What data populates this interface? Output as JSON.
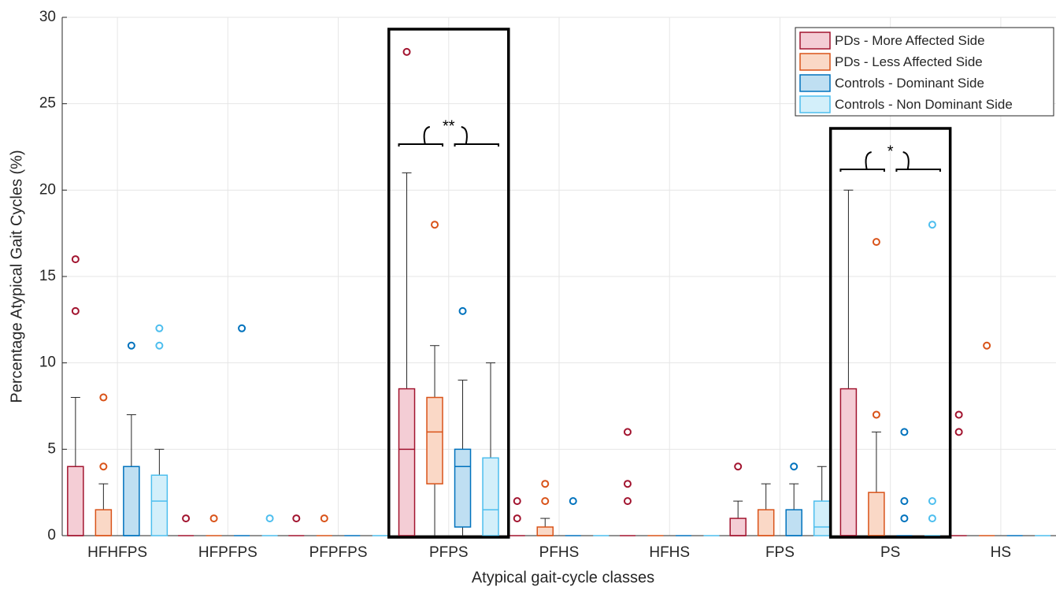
{
  "chart_data": {
    "type": "box",
    "x_label": "Atypical gait-cycle classes",
    "y_label": "Percentage Atypical Gait Cycles (%)",
    "categories": [
      "HFHFPS",
      "HFPFPS",
      "PFPFPS",
      "PFPS",
      "PFHS",
      "HFHS",
      "FPS",
      "PS",
      "HS"
    ],
    "ylim": [
      0,
      30
    ],
    "yticks": [
      0,
      5,
      10,
      15,
      20,
      25,
      30
    ],
    "grid": true,
    "legend": "top-right",
    "series": [
      {
        "name": "PDs - More Affected Side",
        "color": "#a2142f",
        "fill": "#f4cdd5",
        "whisker_low": [
          0,
          0,
          0,
          0,
          0,
          0,
          0,
          0,
          0
        ],
        "q1": [
          0,
          0,
          0,
          0,
          0,
          0,
          0,
          0,
          0
        ],
        "median": [
          0,
          0,
          0,
          5,
          0,
          0,
          0,
          0,
          0
        ],
        "q3": [
          4,
          0,
          0,
          8.5,
          0,
          0,
          1,
          8.5,
          0
        ],
        "whisker_high": [
          8,
          0,
          0,
          21,
          0,
          0,
          2,
          20,
          0
        ],
        "outliers": [
          [
            13,
            16
          ],
          [
            1
          ],
          [
            1
          ],
          [
            28
          ],
          [
            1,
            2
          ],
          [
            2,
            3,
            6
          ],
          [
            4
          ],
          [],
          [
            6,
            7
          ]
        ]
      },
      {
        "name": "PDs - Less Affected Side",
        "color": "#d95319",
        "fill": "#fad8c6",
        "whisker_low": [
          0,
          0,
          0,
          0,
          0,
          0,
          0,
          0,
          0
        ],
        "q1": [
          0,
          0,
          0,
          3,
          0,
          0,
          0,
          0,
          0
        ],
        "median": [
          0,
          0,
          0,
          6,
          0,
          0,
          0,
          0,
          0
        ],
        "q3": [
          1.5,
          0,
          0,
          8,
          0.5,
          0,
          1.5,
          2.5,
          0
        ],
        "whisker_high": [
          3,
          0,
          0,
          11,
          1,
          0,
          3,
          6,
          0
        ],
        "outliers": [
          [
            4,
            8
          ],
          [
            1
          ],
          [
            1
          ],
          [
            18
          ],
          [
            2,
            3
          ],
          [],
          [],
          [
            7,
            17
          ],
          [
            11
          ]
        ]
      },
      {
        "name": "Controls - Dominant Side",
        "color": "#0072bd",
        "fill": "#bfdff2",
        "whisker_low": [
          0,
          0,
          0,
          0,
          0,
          0,
          0,
          0,
          0
        ],
        "q1": [
          0,
          0,
          0,
          0.5,
          0,
          0,
          0,
          0,
          0
        ],
        "median": [
          0,
          0,
          0,
          4,
          0,
          0,
          0,
          0,
          0
        ],
        "q3": [
          4,
          0,
          0,
          5,
          0,
          0,
          1.5,
          0,
          0
        ],
        "whisker_high": [
          7,
          0,
          0,
          9,
          0,
          0,
          3,
          0,
          0
        ],
        "outliers": [
          [
            11
          ],
          [
            12
          ],
          [],
          [
            13
          ],
          [
            2
          ],
          [],
          [
            4
          ],
          [
            1,
            2,
            6
          ],
          []
        ]
      },
      {
        "name": "Controls - Non Dominant Side",
        "color": "#4dbeee",
        "fill": "#d3effa",
        "whisker_low": [
          0,
          0,
          0,
          0,
          0,
          0,
          0,
          0,
          0
        ],
        "q1": [
          0,
          0,
          0,
          0,
          0,
          0,
          0,
          0,
          0
        ],
        "median": [
          2,
          0,
          0,
          1.5,
          0,
          0,
          0.5,
          0,
          0
        ],
        "q3": [
          3.5,
          0,
          0,
          4.5,
          0,
          0,
          2,
          0,
          0
        ],
        "whisker_high": [
          5,
          0,
          0,
          10,
          0,
          0,
          4,
          0,
          0
        ],
        "outliers": [
          [
            11,
            12
          ],
          [
            1
          ],
          [],
          [],
          [],
          [],
          [],
          [
            1,
            2,
            18
          ],
          []
        ]
      }
    ],
    "annotations": [
      {
        "category": "PFPS",
        "text": "**"
      },
      {
        "category": "PS",
        "text": "*"
      }
    ]
  }
}
